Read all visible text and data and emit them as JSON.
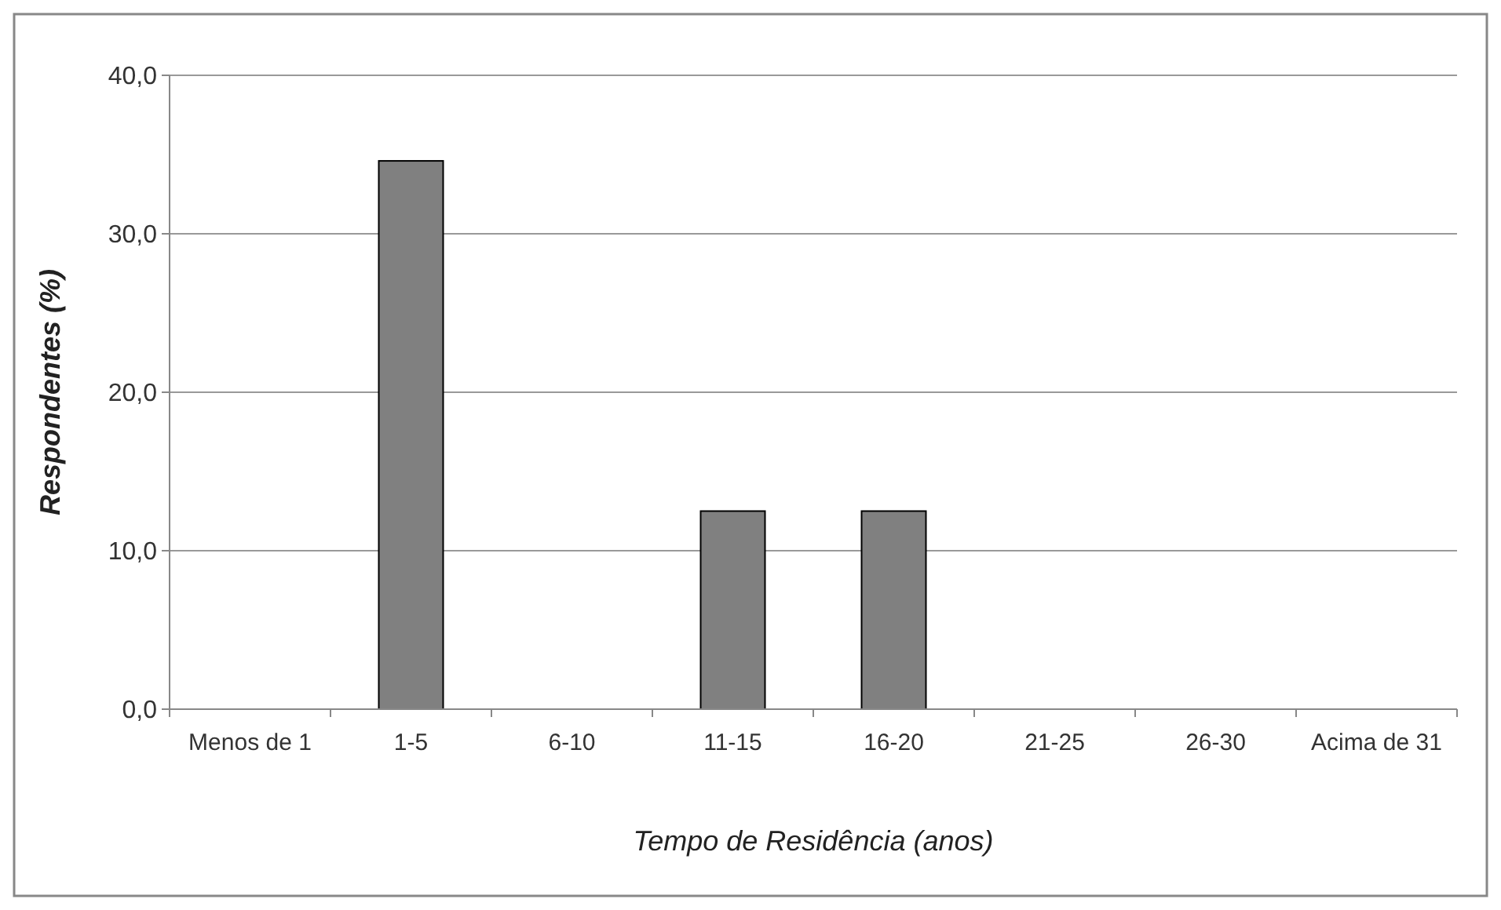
{
  "chart_data": {
    "type": "bar",
    "xlabel": "Tempo de Residência (anos)",
    "ylabel": "Respondentes (%)",
    "categories": [
      "Menos de 1",
      "1-5",
      "6-10",
      "11-15",
      "16-20",
      "21-25",
      "26-30",
      "Acima de 31"
    ],
    "values": [
      0,
      34.6,
      0,
      12.5,
      12.5,
      0,
      0,
      0
    ],
    "color": "#808080",
    "ylim": [
      0,
      40
    ],
    "yticks": [
      {
        "value": 0,
        "label": "0,0"
      },
      {
        "value": 10,
        "label": "10,0"
      },
      {
        "value": 20,
        "label": "20,0"
      },
      {
        "value": 30,
        "label": "30,0"
      },
      {
        "value": 40,
        "label": "40,0"
      }
    ],
    "grid": "y"
  }
}
